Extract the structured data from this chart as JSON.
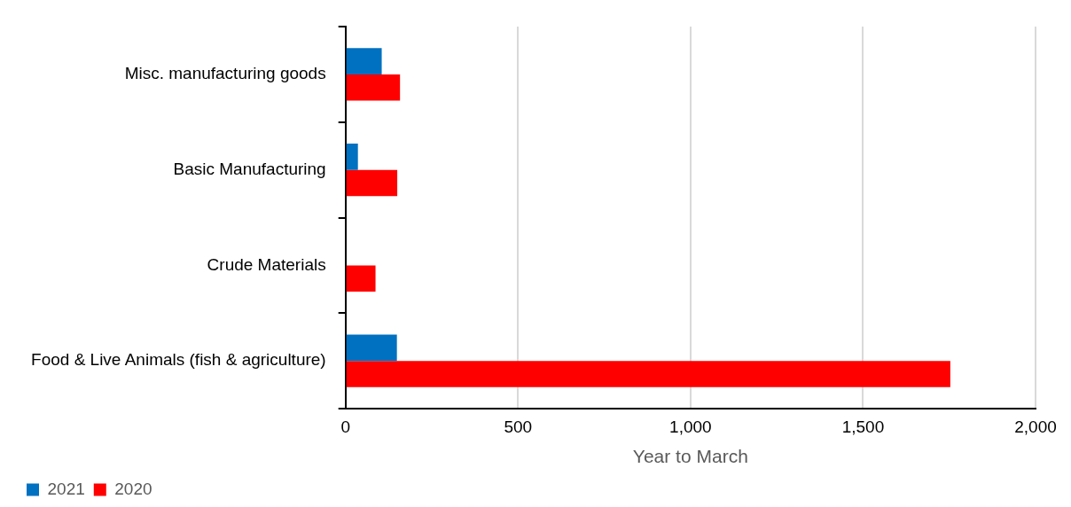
{
  "chart_data": {
    "type": "bar",
    "orientation": "horizontal",
    "xlabel": "Year to March",
    "categories": [
      "Misc. manufacturing goods",
      "Basic Manufacturing",
      "Crude Materials",
      "Food & Live Animals (fish & agriculture)"
    ],
    "series": [
      {
        "name": "2021",
        "color": "#0070c0",
        "values": [
          105,
          36,
          null,
          149
        ]
      },
      {
        "name": "2020",
        "color": "#ff0000",
        "values": [
          158,
          150,
          87,
          1753
        ]
      }
    ],
    "xlim": [
      0,
      2000
    ],
    "xticks": [
      {
        "value": 0,
        "label": "0"
      },
      {
        "value": 500,
        "label": "500"
      },
      {
        "value": 1000,
        "label": "1,000"
      },
      {
        "value": 1500,
        "label": "1,500"
      },
      {
        "value": 2000,
        "label": "2,000"
      }
    ],
    "grid": "x",
    "legend": "bottom left"
  }
}
